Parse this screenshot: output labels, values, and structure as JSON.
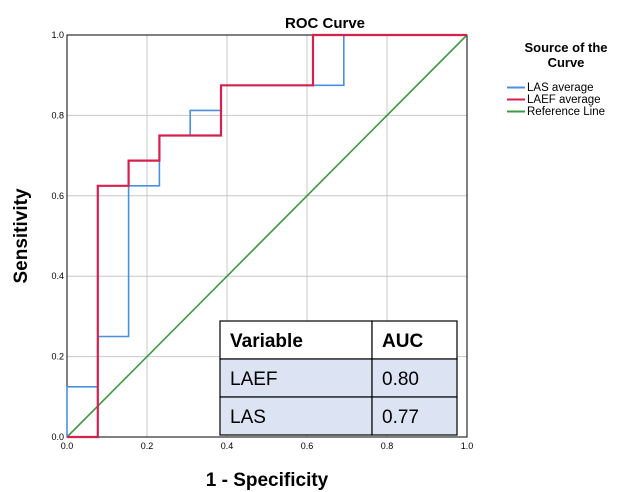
{
  "chart_data": {
    "type": "line",
    "title": "ROC Curve",
    "xlabel": "1 - Specificity",
    "ylabel": "Sensitivity",
    "xlim": [
      0.0,
      1.0
    ],
    "ylim": [
      0.0,
      1.0
    ],
    "xticks": [
      "0.0",
      "0.2",
      "0.4",
      "0.6",
      "0.8",
      "1.0"
    ],
    "yticks": [
      "0.0",
      "0.2",
      "0.4",
      "0.6",
      "0.8",
      "1.0"
    ],
    "grid": true,
    "legend": {
      "title_lines": [
        "Source of the",
        "Curve"
      ],
      "placement": "right"
    },
    "series": [
      {
        "name": "LAS average",
        "color": "#4a90e2",
        "x": [
          0.0,
          0.0,
          0.077,
          0.077,
          0.154,
          0.154,
          0.231,
          0.231,
          0.308,
          0.308,
          0.385,
          0.385,
          0.692,
          0.692,
          1.0
        ],
        "y": [
          0.0,
          0.125,
          0.125,
          0.25,
          0.25,
          0.625,
          0.625,
          0.75,
          0.75,
          0.8125,
          0.8125,
          0.875,
          0.875,
          1.0,
          1.0
        ]
      },
      {
        "name": "LAEF average",
        "color": "#d6204e",
        "x": [
          0.0,
          0.077,
          0.077,
          0.154,
          0.154,
          0.231,
          0.231,
          0.385,
          0.385,
          0.615,
          0.615,
          1.0
        ],
        "y": [
          0.0,
          0.0,
          0.625,
          0.625,
          0.6875,
          0.6875,
          0.75,
          0.75,
          0.875,
          0.875,
          1.0,
          1.0
        ]
      },
      {
        "name": "Reference Line",
        "color": "#3f9a43",
        "x": [
          0.0,
          1.0
        ],
        "y": [
          0.0,
          1.0
        ]
      }
    ],
    "table": {
      "headers": [
        "Variable",
        "AUC"
      ],
      "rows": [
        [
          "LAEF",
          "0.80"
        ],
        [
          "LAS",
          "0.77"
        ]
      ]
    }
  }
}
